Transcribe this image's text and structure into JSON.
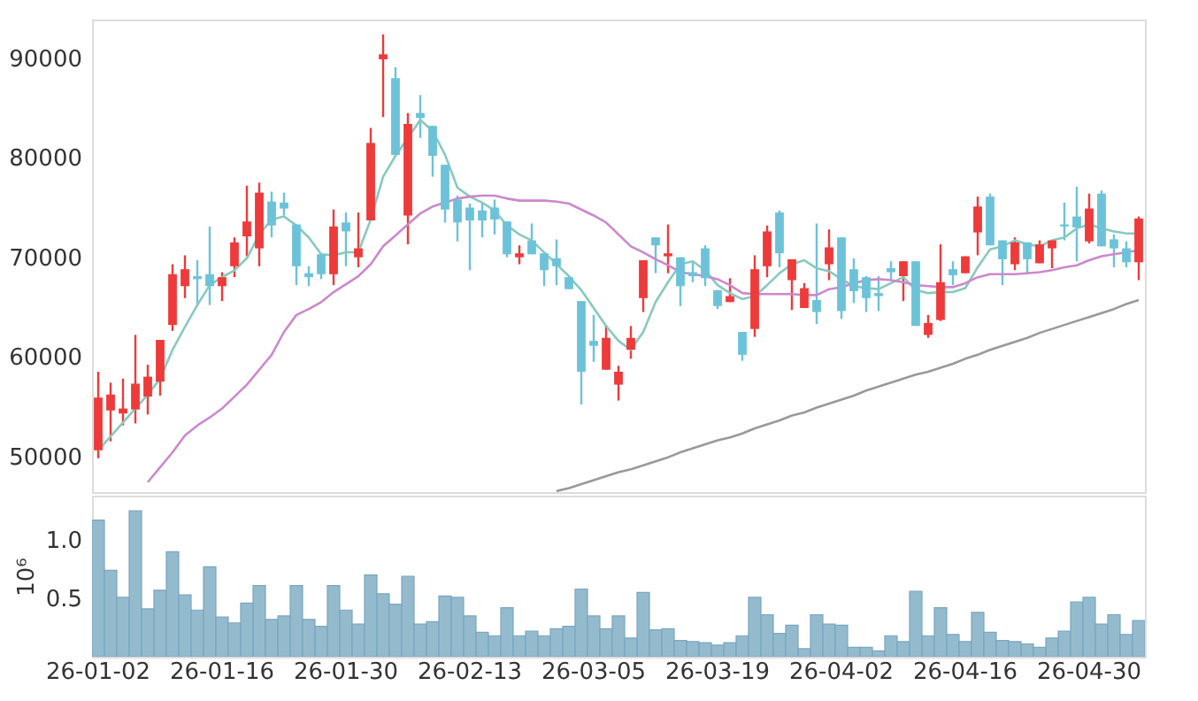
{
  "chart_data": [
    {
      "type": "candlestick",
      "categories": [
        null,
        null,
        null,
        null,
        null,
        null,
        null,
        null,
        null,
        null,
        null,
        null,
        null,
        null,
        null,
        null,
        null,
        null,
        null,
        null,
        null,
        null,
        null,
        null,
        null,
        null,
        null,
        null,
        null,
        null,
        null,
        null,
        null,
        null,
        null,
        null,
        null,
        null,
        null,
        null,
        null,
        null,
        null,
        null,
        null,
        null,
        null,
        null,
        null,
        null,
        null,
        null,
        null,
        null,
        null,
        null,
        null,
        null,
        null,
        null,
        null,
        null,
        null,
        null,
        null,
        null,
        null,
        null,
        null,
        null,
        null,
        null,
        null,
        null,
        null,
        null,
        null,
        null,
        null,
        null,
        null,
        null,
        null,
        null,
        null
      ],
      "ohlc": [
        [
          50600,
          58500,
          49800,
          55900
        ],
        [
          54600,
          57400,
          51500,
          56200
        ],
        [
          54300,
          57800,
          53100,
          54800
        ],
        [
          54700,
          62200,
          53300,
          57300
        ],
        [
          56000,
          59200,
          54200,
          58000
        ],
        [
          57500,
          61700,
          56100,
          61700
        ],
        [
          63200,
          69300,
          62600,
          68300
        ],
        [
          67100,
          70200,
          65900,
          68800
        ],
        [
          68100,
          69700,
          65200,
          67800
        ],
        [
          68300,
          73100,
          65200,
          67100
        ],
        [
          67100,
          68500,
          65600,
          68000
        ],
        [
          69100,
          72000,
          68000,
          71500
        ],
        [
          72100,
          77200,
          70100,
          73600
        ],
        [
          70900,
          77500,
          69100,
          76500
        ],
        [
          75600,
          76600,
          72000,
          73200
        ],
        [
          75500,
          76500,
          74200,
          74900
        ],
        [
          73300,
          73300,
          67200,
          69100
        ],
        [
          68400,
          69100,
          67100,
          68000
        ],
        [
          70300,
          70300,
          67800,
          68300
        ],
        [
          68300,
          74800,
          67200,
          73100
        ],
        [
          73500,
          74500,
          69100,
          72600
        ],
        [
          70000,
          74500,
          69000,
          70900
        ],
        [
          73700,
          83000,
          73700,
          81500
        ],
        [
          89900,
          92400,
          84100,
          90400
        ],
        [
          88000,
          89100,
          80300,
          80300
        ],
        [
          74200,
          84500,
          71300,
          83400
        ],
        [
          84500,
          86300,
          82000,
          84000
        ],
        [
          83200,
          83200,
          78100,
          80200
        ],
        [
          79300,
          79300,
          73500,
          74800
        ],
        [
          75800,
          76200,
          71600,
          73500
        ],
        [
          75000,
          75400,
          68700,
          73700
        ],
        [
          74700,
          75500,
          72000,
          73700
        ],
        [
          75000,
          75800,
          72300,
          73800
        ],
        [
          73600,
          73600,
          70000,
          70300
        ],
        [
          70000,
          71200,
          69300,
          70400
        ],
        [
          71700,
          73400,
          70300,
          70300
        ],
        [
          70400,
          70400,
          67100,
          68700
        ],
        [
          69900,
          71800,
          67200,
          69100
        ],
        [
          68000,
          68000,
          66800,
          66800
        ],
        [
          65600,
          65600,
          55200,
          58500
        ],
        [
          61600,
          64200,
          59500,
          61100
        ],
        [
          58700,
          63200,
          58700,
          61900
        ],
        [
          57200,
          59100,
          55600,
          58500
        ],
        [
          60700,
          63100,
          59800,
          61900
        ],
        [
          65900,
          69700,
          64500,
          69700
        ],
        [
          72000,
          72000,
          68400,
          71200
        ],
        [
          70100,
          73300,
          68400,
          70400
        ],
        [
          70000,
          70000,
          65100,
          67100
        ],
        [
          68500,
          69600,
          67500,
          68100
        ],
        [
          70900,
          71200,
          67100,
          67900
        ],
        [
          66700,
          66700,
          64800,
          65100
        ],
        [
          65500,
          67900,
          65500,
          66100
        ],
        [
          62500,
          62500,
          59600,
          60200
        ],
        [
          62800,
          70200,
          62000,
          68800
        ],
        [
          69100,
          73200,
          68000,
          72600
        ],
        [
          74500,
          74700,
          69000,
          70400
        ],
        [
          67700,
          69800,
          64700,
          69800
        ],
        [
          64900,
          67400,
          64900,
          66900
        ],
        [
          65700,
          73400,
          63300,
          64500
        ],
        [
          69300,
          72800,
          67700,
          71000
        ],
        [
          72000,
          72000,
          63800,
          64600
        ],
        [
          68800,
          69900,
          65400,
          66600
        ],
        [
          68000,
          68100,
          64500,
          65900
        ],
        [
          66400,
          68100,
          64600,
          66100
        ],
        [
          68900,
          69600,
          67800,
          68500
        ],
        [
          68100,
          69600,
          65600,
          69600
        ],
        [
          69600,
          69600,
          63100,
          63100
        ],
        [
          62200,
          64200,
          61900,
          63400
        ],
        [
          63700,
          71300,
          63600,
          67500
        ],
        [
          68800,
          69600,
          67200,
          68200
        ],
        [
          68400,
          70100,
          68400,
          70100
        ],
        [
          72500,
          76100,
          70200,
          75100
        ],
        [
          76100,
          76400,
          71200,
          71200
        ],
        [
          71700,
          71700,
          67200,
          69800
        ],
        [
          69300,
          72000,
          68700,
          71500
        ],
        [
          71500,
          71500,
          68400,
          69800
        ],
        [
          69400,
          71700,
          69400,
          71300
        ],
        [
          70900,
          71700,
          68900,
          71700
        ],
        [
          73300,
          75500,
          71700,
          73100
        ],
        [
          74100,
          77100,
          69600,
          73000
        ],
        [
          71600,
          76400,
          71400,
          74900
        ],
        [
          76400,
          76700,
          71100,
          71100
        ],
        [
          71800,
          72300,
          69000,
          70900
        ],
        [
          70900,
          71600,
          69000,
          69500
        ],
        [
          69500,
          74100,
          67700,
          73900
        ]
      ],
      "colors": [
        "#ee3a3a",
        "#ee3a3a",
        "#ee3a3a",
        "#ee3a3a",
        "#ee3a3a",
        "#ee3a3a",
        "#ee3a3a",
        "#ee3a3a",
        "#6cc3d9",
        "#6cc3d9",
        "#ee3a3a",
        "#ee3a3a",
        "#ee3a3a",
        "#ee3a3a",
        "#6cc3d9",
        "#6cc3d9",
        "#6cc3d9",
        "#6cc3d9",
        "#6cc3d9",
        "#ee3a3a",
        "#6cc3d9",
        "#ee3a3a",
        "#ee3a3a",
        "#ee3a3a",
        "#6cc3d9",
        "#ee3a3a",
        "#6cc3d9",
        "#6cc3d9",
        "#6cc3d9",
        "#6cc3d9",
        "#6cc3d9",
        "#6cc3d9",
        "#6cc3d9",
        "#6cc3d9",
        "#ee3a3a",
        "#6cc3d9",
        "#6cc3d9",
        "#6cc3d9",
        "#6cc3d9",
        "#6cc3d9",
        "#6cc3d9",
        "#ee3a3a",
        "#ee3a3a",
        "#ee3a3a",
        "#ee3a3a",
        "#6cc3d9",
        "#ee3a3a",
        "#6cc3d9",
        "#6cc3d9",
        "#6cc3d9",
        "#6cc3d9",
        "#ee3a3a",
        "#6cc3d9",
        "#ee3a3a",
        "#ee3a3a",
        "#6cc3d9",
        "#ee3a3a",
        "#ee3a3a",
        "#6cc3d9",
        "#ee3a3a",
        "#6cc3d9",
        "#6cc3d9",
        "#6cc3d9",
        "#6cc3d9",
        "#6cc3d9",
        "#ee3a3a",
        "#6cc3d9",
        "#ee3a3a",
        "#ee3a3a",
        "#6cc3d9",
        "#ee3a3a",
        "#ee3a3a",
        "#6cc3d9",
        "#6cc3d9",
        "#ee3a3a",
        "#6cc3d9",
        "#ee3a3a",
        "#ee3a3a",
        "#6cc3d9",
        "#6cc3d9",
        "#ee3a3a",
        "#6cc3d9",
        "#6cc3d9",
        "#6cc3d9",
        "#ee3a3a"
      ],
      "series": [
        {
          "type": "line",
          "color": "#88c9c0",
          "values": [
            50600,
            52000,
            53400,
            54800,
            56200,
            57800,
            60700,
            63000,
            65200,
            67200,
            68000,
            68700,
            69900,
            72300,
            73800,
            74100,
            73200,
            72000,
            70300,
            70200,
            70500,
            70500,
            73800,
            78100,
            80200,
            82000,
            83800,
            82700,
            80300,
            77000,
            76100,
            75500,
            74700,
            73200,
            72300,
            71700,
            70500,
            69300,
            68100,
            66700,
            64900,
            63100,
            61600,
            60700,
            62500,
            65500,
            67500,
            69300,
            69600,
            68700,
            67200,
            66400,
            65800,
            66100,
            67200,
            68400,
            69300,
            69700,
            68900,
            68600,
            67800,
            67100,
            66900,
            66800,
            67400,
            68000,
            66700,
            66400,
            66500,
            66500,
            66900,
            69000,
            70800,
            71100,
            71700,
            71300,
            71100,
            71700,
            72000,
            72900,
            73300,
            72900,
            72600,
            72400,
            72400
          ]
        },
        {
          "type": "line",
          "color": "#cc88cc",
          "values": [
            null,
            null,
            null,
            null,
            47400,
            48900,
            50400,
            52100,
            53100,
            53900,
            54800,
            56000,
            57200,
            58700,
            60200,
            62500,
            64200,
            64800,
            65500,
            66500,
            67300,
            68100,
            69300,
            71100,
            72200,
            73300,
            74400,
            75100,
            75500,
            75900,
            76100,
            76200,
            76200,
            75900,
            75700,
            75700,
            75700,
            75600,
            75400,
            74800,
            74200,
            73500,
            72300,
            71100,
            70500,
            69800,
            69200,
            68500,
            68300,
            68100,
            67800,
            67200,
            66400,
            66300,
            66300,
            66300,
            66300,
            66200,
            66200,
            66800,
            67000,
            67400,
            67700,
            67800,
            67700,
            67500,
            67200,
            67100,
            67000,
            67000,
            67400,
            68000,
            68300,
            68300,
            68300,
            68400,
            68500,
            68700,
            69000,
            69200,
            69700,
            70100,
            70300,
            70500,
            70700
          ]
        },
        {
          "type": "line",
          "color": "#999999",
          "values": [
            null,
            null,
            null,
            null,
            null,
            null,
            null,
            null,
            null,
            null,
            null,
            null,
            null,
            null,
            null,
            null,
            null,
            null,
            null,
            null,
            null,
            null,
            null,
            null,
            null,
            null,
            null,
            null,
            null,
            null,
            null,
            null,
            null,
            null,
            null,
            null,
            null,
            46500,
            46800,
            47200,
            47600,
            48000,
            48400,
            48700,
            49100,
            49500,
            49900,
            50400,
            50800,
            51200,
            51600,
            51900,
            52300,
            52800,
            53200,
            53600,
            54100,
            54400,
            54900,
            55300,
            55700,
            56100,
            56600,
            57000,
            57400,
            57800,
            58200,
            58500,
            58900,
            59300,
            59800,
            60200,
            60700,
            61100,
            61500,
            61900,
            62400,
            62800,
            63200,
            63600,
            64000,
            64400,
            64800,
            65300,
            65700
          ]
        }
      ],
      "ylim": [
        46400,
        93900
      ],
      "yticks": [
        50000,
        60000,
        70000,
        80000,
        90000
      ],
      "tick_labels": "y"
    },
    {
      "type": "bar",
      "categories": [
        "26-01-02",
        null,
        null,
        null,
        null,
        null,
        null,
        null,
        null,
        null,
        "26-01-16",
        null,
        null,
        null,
        null,
        null,
        null,
        null,
        null,
        null,
        "26-01-30",
        null,
        null,
        null,
        null,
        null,
        null,
        null,
        null,
        null,
        "26-02-13",
        null,
        null,
        null,
        null,
        null,
        null,
        null,
        null,
        null,
        "26-03-05",
        null,
        null,
        null,
        null,
        null,
        null,
        null,
        null,
        null,
        "26-03-19",
        null,
        null,
        null,
        null,
        null,
        null,
        null,
        null,
        null,
        "26-04-02",
        null,
        null,
        null,
        null,
        null,
        null,
        null,
        null,
        null,
        "26-04-16",
        null,
        null,
        null,
        null,
        null,
        null,
        null,
        null,
        null,
        "26-04-30",
        null,
        null,
        null,
        null
      ],
      "series": [
        {
          "color": "#94bacd",
          "values": [
            1.17,
            0.74,
            0.51,
            1.25,
            0.41,
            0.57,
            0.9,
            0.53,
            0.4,
            0.77,
            0.34,
            0.29,
            0.46,
            0.61,
            0.32,
            0.35,
            0.61,
            0.32,
            0.26,
            0.61,
            0.4,
            0.28,
            0.7,
            0.54,
            0.45,
            0.69,
            0.28,
            0.3,
            0.52,
            0.51,
            0.35,
            0.21,
            0.18,
            0.42,
            0.18,
            0.22,
            0.18,
            0.24,
            0.26,
            0.58,
            0.35,
            0.24,
            0.35,
            0.16,
            0.55,
            0.23,
            0.24,
            0.14,
            0.13,
            0.12,
            0.1,
            0.12,
            0.18,
            0.51,
            0.36,
            0.2,
            0.27,
            0.07,
            0.36,
            0.28,
            0.27,
            0.08,
            0.08,
            0.05,
            0.18,
            0.13,
            0.56,
            0.18,
            0.42,
            0.19,
            0.13,
            0.38,
            0.21,
            0.14,
            0.13,
            0.11,
            0.08,
            0.16,
            0.22,
            0.47,
            0.51,
            0.28,
            0.36,
            0.19,
            0.31
          ]
        }
      ],
      "ylabel": "10⁶",
      "ylim": [
        0,
        1.38
      ],
      "yticks": [
        {
          "value": 0.5,
          "label": "0.5"
        },
        {
          "value": 1,
          "label": "1.0"
        }
      ]
    }
  ]
}
